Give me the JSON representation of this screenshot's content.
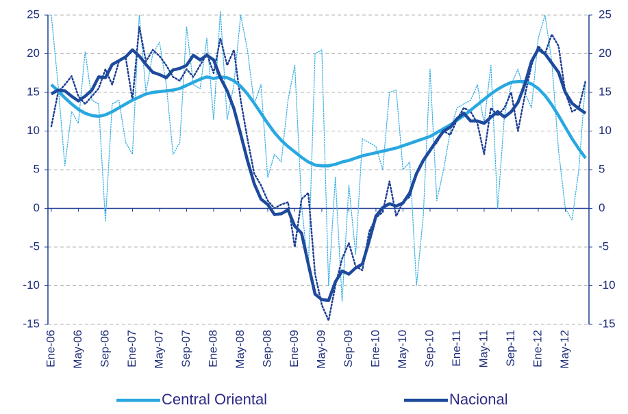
{
  "chart_data": {
    "type": "line",
    "categories": [
      "Ene-06",
      null,
      null,
      null,
      "May-06",
      null,
      null,
      null,
      "Sep-06",
      null,
      null,
      null,
      "Ene-07",
      null,
      null,
      null,
      "May-07",
      null,
      null,
      null,
      "Sep-07",
      null,
      null,
      null,
      "Ene-08",
      null,
      null,
      null,
      "May-08",
      null,
      null,
      null,
      "Sep-08",
      null,
      null,
      null,
      "Ene-09",
      null,
      null,
      null,
      "May-09",
      null,
      null,
      null,
      "Sep-09",
      null,
      null,
      null,
      "Ene-10",
      null,
      null,
      null,
      "May-10",
      null,
      null,
      null,
      "Sep-10",
      null,
      null,
      null,
      "Ene-11",
      null,
      null,
      null,
      "May-11",
      null,
      null,
      null,
      "Sep-11",
      null,
      null,
      null,
      "Ene-12",
      null,
      null,
      null,
      "May-12",
      null,
      null,
      null
    ],
    "series": [
      {
        "color": "#33aee3",
        "style": "dotted",
        "width": 1.3,
        "values": [
          25,
          16,
          5.5,
          12.5,
          11,
          20.3,
          14,
          13.5,
          -1.7,
          13.5,
          14,
          8.5,
          7,
          25,
          15,
          20,
          21.5,
          16,
          7,
          8.5,
          23.5,
          16,
          15.5,
          22,
          11.5,
          25.5,
          11.5,
          16,
          25,
          20.5,
          13.5,
          16,
          4,
          7,
          6,
          14,
          18.5,
          0.5,
          -8,
          20,
          20.5,
          -10,
          4,
          -12,
          3,
          -6,
          9,
          8.5,
          8,
          5,
          15,
          15.3,
          5,
          6,
          -10,
          -1,
          18,
          1,
          5,
          10,
          13,
          13.5,
          14,
          16,
          11,
          18.5,
          0,
          12,
          16,
          18,
          15,
          13,
          22,
          25,
          19,
          7.5,
          0,
          -1.5,
          5,
          16.5
        ]
      },
      {
        "color": "#1f3f94",
        "style": "dotted",
        "width": 2.5,
        "values": [
          10.6,
          15,
          16,
          17.1,
          14.5,
          13.5,
          14.5,
          15.5,
          18,
          16,
          19,
          19.5,
          14,
          23.5,
          19,
          20.5,
          19.7,
          18.5,
          17,
          16.5,
          18,
          17,
          18.5,
          20,
          17.5,
          22,
          18.5,
          20.5,
          14,
          9,
          4.5,
          3,
          1,
          0,
          0.5,
          0.8,
          -5,
          1.2,
          2,
          -8.5,
          -12.5,
          -14.5,
          -10,
          -6.5,
          -4.5,
          -7.5,
          -8,
          -3,
          -1.2,
          -0.5,
          3.5,
          -1,
          0.8,
          1.5,
          4.5,
          6,
          7.5,
          8.5,
          10,
          9.5,
          11.5,
          13,
          12.5,
          11,
          7,
          13,
          12,
          13,
          15,
          10,
          14.5,
          18.5,
          21,
          20,
          22.5,
          21,
          15,
          12.5,
          13,
          16.5
        ]
      },
      {
        "name": "Central Oriental",
        "color": "#29a8e0",
        "style": "solid",
        "width": 4.5,
        "values": [
          16,
          15.2,
          14.3,
          13.5,
          12.8,
          12.3,
          12,
          11.9,
          12.1,
          12.5,
          13,
          13.5,
          14,
          14.4,
          14.8,
          15,
          15.1,
          15.2,
          15.3,
          15.5,
          15.9,
          16.3,
          16.7,
          17,
          16.8,
          17,
          16.9,
          16.5,
          15.8,
          14.8,
          13.6,
          12.3,
          11,
          9.8,
          8.8,
          8,
          7.3,
          6.6,
          6,
          5.6,
          5.5,
          5.5,
          5.7,
          6,
          6.2,
          6.5,
          6.8,
          7,
          7.2,
          7.4,
          7.6,
          7.8,
          8.1,
          8.4,
          8.7,
          9,
          9.3,
          9.8,
          10.3,
          10.8,
          11.4,
          12,
          12.7,
          13.4,
          14.1,
          14.8,
          15.4,
          15.9,
          16.3,
          16.4,
          16.4,
          16.1,
          15.5,
          14.6,
          13.4,
          12,
          10.5,
          9,
          7.7,
          6.5
        ]
      },
      {
        "name": "Nacional",
        "color": "#1d4a9c",
        "style": "solid",
        "width": 4.5,
        "values": [
          14.8,
          15.3,
          15.2,
          14.5,
          13.9,
          14.5,
          15.3,
          17,
          16.9,
          18.6,
          19.1,
          19.6,
          20.5,
          19.7,
          18.6,
          17.6,
          17.3,
          16.9,
          17.9,
          18.1,
          18.5,
          19.8,
          19.2,
          19.8,
          19.2,
          16.9,
          15.2,
          12.9,
          9.6,
          6.2,
          3.2,
          1.2,
          0.5,
          -0.8,
          -0.7,
          -0.2,
          -2.3,
          -3.2,
          -7.2,
          -11.1,
          -11.8,
          -11.9,
          -9.5,
          -8.1,
          -8.5,
          -7.7,
          -7.2,
          -4.2,
          -1,
          0.1,
          0.6,
          0.3,
          0.7,
          2,
          4.5,
          6.2,
          7.5,
          8.8,
          10,
          10.5,
          11.6,
          12.3,
          11.3,
          11.3,
          11,
          11.8,
          12.5,
          11.8,
          12.5,
          13.7,
          16,
          19,
          20.6,
          20,
          18.8,
          17.6,
          15,
          13.6,
          12.9,
          12.3
        ]
      }
    ],
    "ylim": [
      -15,
      25
    ],
    "yticks": [
      -15,
      -10,
      -5,
      0,
      5,
      10,
      15,
      20,
      25
    ],
    "y2lim": [
      -15,
      25
    ],
    "y2ticks": [
      -15,
      -10,
      -5,
      0,
      5,
      10,
      15,
      20,
      25
    ],
    "grid": true,
    "legend": "bottom"
  }
}
